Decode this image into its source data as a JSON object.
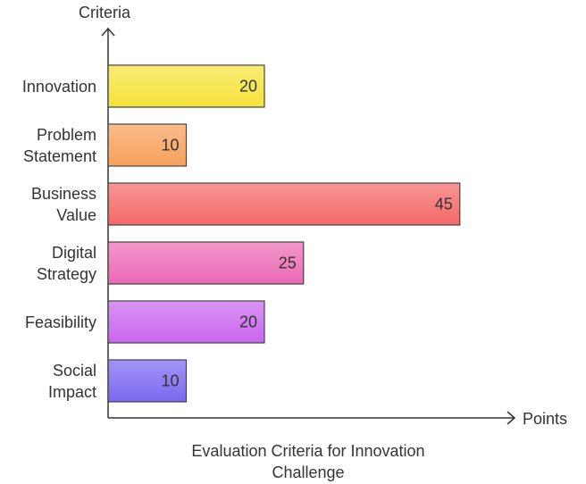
{
  "chart_data": {
    "type": "bar",
    "orientation": "horizontal",
    "title": "Evaluation Criteria for Innovation Challenge",
    "y_label": "Criteria",
    "x_label": "Points",
    "categories": [
      "Innovation",
      "Problem Statement",
      "Business Value",
      "Digital Strategy",
      "Feasibility",
      "Social Impact"
    ],
    "values": [
      20,
      10,
      45,
      25,
      20,
      10
    ],
    "colors": [
      "#f5e33a",
      "#f7a05a",
      "#f46868",
      "#ec6ab4",
      "#c966ee",
      "#7a68f0"
    ]
  }
}
